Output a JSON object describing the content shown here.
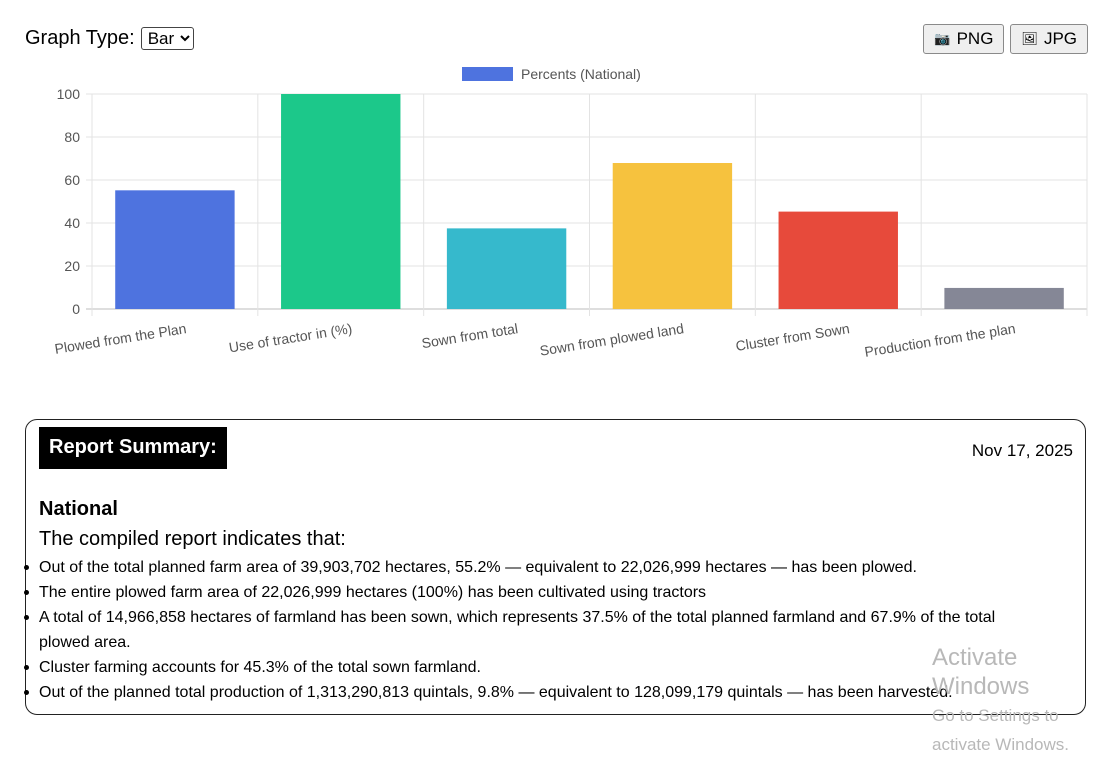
{
  "toolbar": {
    "graph_type_label": "Graph Type:",
    "graph_type_value": "Bar",
    "graph_type_options": [
      "Bar"
    ],
    "png_label": "PNG",
    "jpg_label": "JPG",
    "png_icon": "camera-icon",
    "jpg_icon": "image-icon"
  },
  "chart_data": {
    "type": "bar",
    "categories": [
      "Plowed from the Plan",
      "Use of tractor in (%)",
      "Sown from total",
      "Sown from plowed land",
      "Cluster from Sown",
      "Production from the plan"
    ],
    "series": [
      {
        "name": "Percents (National)",
        "values": [
          55.2,
          100,
          37.5,
          67.9,
          45.3,
          9.8
        ]
      }
    ],
    "colors": [
      "#4e73df",
      "#1cc88a",
      "#36b9cc",
      "#f6c23e",
      "#e74a3b",
      "#858796"
    ],
    "legend_color": "#4e73df",
    "ylim": [
      0,
      100
    ],
    "yticks": [
      0,
      20,
      40,
      60,
      80,
      100
    ],
    "grid": true,
    "legend_position": "top"
  },
  "report": {
    "title": "Report Summary:",
    "date": "Nov 17, 2025",
    "region": "National",
    "intro": "The compiled report indicates that:",
    "findings": [
      "Out of the total planned farm area of 39,903,702 hectares, 55.2% — equivalent to 22,026,999 hectares — has been plowed.",
      "The entire plowed farm area of 22,026,999 hectares (100%) has been cultivated using tractors",
      "A total of 14,966,858 hectares of farmland has been sown, which represents 37.5% of the total planned farmland and 67.9% of the total plowed area.",
      "Cluster farming accounts for 45.3% of the total sown farmland.",
      "Out of the planned total production of 1,313,290,813 quintals, 9.8% — equivalent to 128,099,179 quintals — has been harvested."
    ]
  },
  "watermark": {
    "line1": "Activate Windows",
    "line2": "Go to Settings to activate Windows."
  }
}
